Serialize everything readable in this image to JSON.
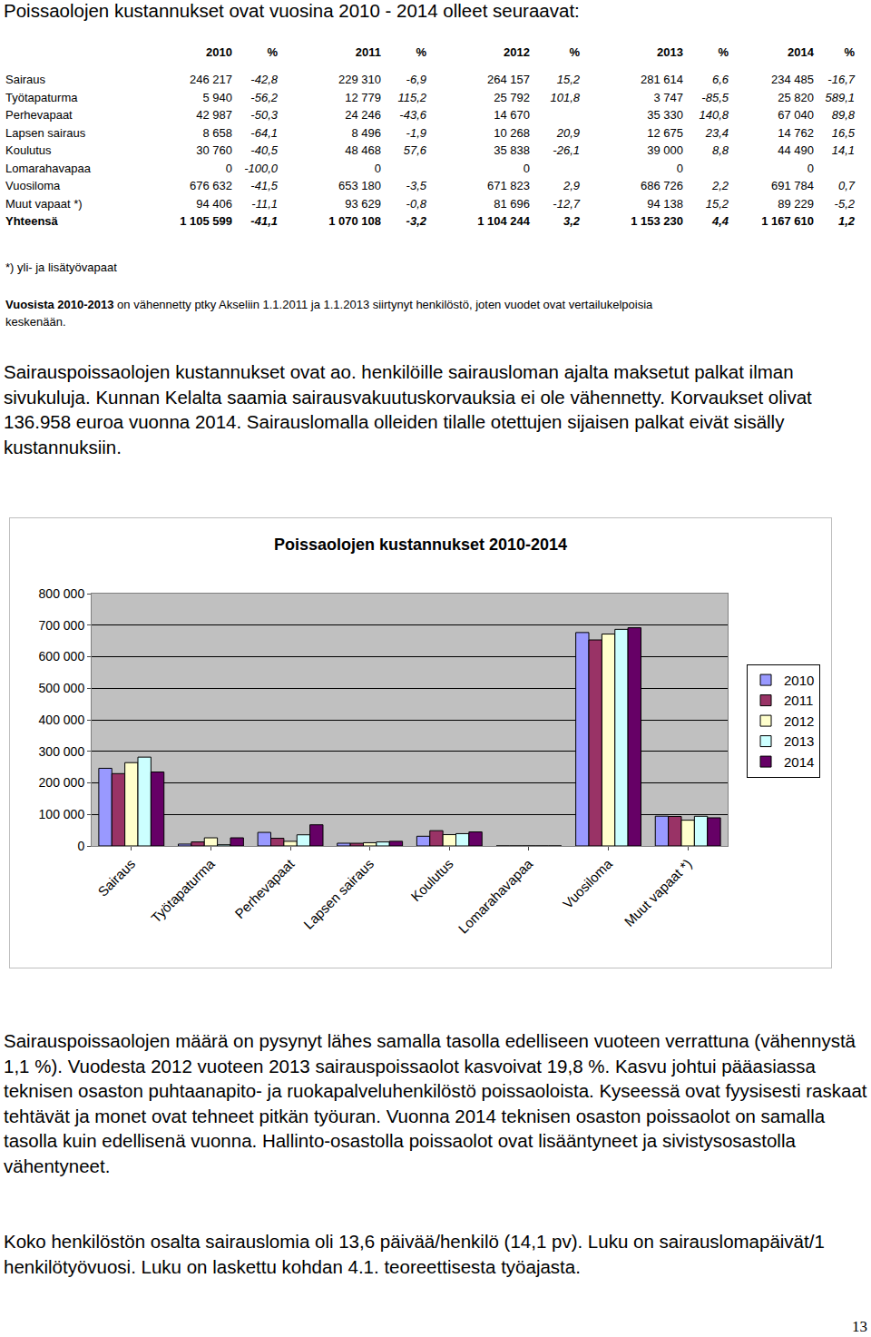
{
  "heading": "Poissaolojen kustannukset ovat vuosina 2010 - 2014 olleet seuraavat:",
  "table": {
    "header": [
      "2010",
      "%",
      "2011",
      "%",
      "2012",
      "%",
      "2013",
      "%",
      "2014",
      "%"
    ],
    "rows": [
      [
        "Sairaus",
        "246 217",
        "-42,8",
        "229 310",
        "-6,9",
        "264 157",
        "15,2",
        "281 614",
        "6,6",
        "234 485",
        "-16,7"
      ],
      [
        "Työtapaturma",
        "5 940",
        "-56,2",
        "12 779",
        "115,2",
        "25 792",
        "101,8",
        "3 747",
        "-85,5",
        "25 820",
        "589,1"
      ],
      [
        "Perhevapaat",
        "42 987",
        "-50,3",
        "24 246",
        "-43,6",
        "14 670",
        null,
        "35 330",
        "140,8",
        "67 040",
        "89,8"
      ],
      [
        "Lapsen sairaus",
        "8 658",
        "-64,1",
        "8 496",
        "-1,9",
        "10 268",
        "20,9",
        "12 675",
        "23,4",
        "14 762",
        "16,5"
      ],
      [
        "Koulutus",
        "30 760",
        "-40,5",
        "48 468",
        "57,6",
        "35 838",
        "-26,1",
        "39 000",
        "8,8",
        "44 490",
        "14,1"
      ],
      [
        "Lomarahavapaa",
        "0",
        "-100,0",
        "0",
        null,
        "0",
        null,
        "0",
        null,
        "0",
        null
      ],
      [
        "Vuosiloma",
        "676 632",
        "-41,5",
        "653 180",
        "-3,5",
        "671 823",
        "2,9",
        "686 726",
        "2,2",
        "691 784",
        "0,7"
      ],
      [
        "Muut vapaat *)",
        "94 406",
        "-11,1",
        "93 629",
        "-0,8",
        "81 696",
        "-12,7",
        "94 138",
        "15,2",
        "89 229",
        "-5,2"
      ],
      [
        "Yhteensä",
        "1 105 599",
        "-41,1",
        "1 070 108",
        "-3,2",
        "1 104 244",
        "3,2",
        "1 153 230",
        "4,4",
        "1 167 610",
        "1,2"
      ]
    ]
  },
  "notes": {
    "footnote": "*) yli- ja lisätyövapaat",
    "comparison_bold": "Vuosista 2010-2013",
    "comparison_rest": " on vähennetty ptky Akseliin 1.1.2011 ja 1.1.2013 siirtynyt henkilöstö, joten vuodet ovat vertailukelpoisia keskenään."
  },
  "paragraph_before_chart": "Sairauspoissaolojen kustannukset ovat ao. henkilöille sairausloman ajalta maksetut palkat ilman sivukuluja. Kunnan Kelalta saamia sairausvakuutuskorvauksia ei ole vähennetty. Korvaukset olivat 136.958 euroa vuonna 2014. Sairauslomalla olleiden tilalle otettujen sijaisen palkat eivät sisälly kustannuksiin.",
  "chart_data": {
    "type": "bar",
    "title": "Poissaolojen kustannukset 2010-2014",
    "categories": [
      "Sairaus",
      "Työtapaturma",
      "Perhevapaat",
      "Lapsen sairaus",
      "Koulutus",
      "Lomarahavapaa",
      "Vuosiloma",
      "Muut vapaat *)"
    ],
    "series": [
      {
        "name": "2010",
        "color": "#9999ff",
        "values": [
          246217,
          5940,
          42987,
          8658,
          30760,
          0,
          676632,
          94406
        ]
      },
      {
        "name": "2011",
        "color": "#993366",
        "values": [
          229310,
          12779,
          24246,
          8496,
          48468,
          0,
          653180,
          93629
        ]
      },
      {
        "name": "2012",
        "color": "#ffffcc",
        "values": [
          264157,
          25792,
          14670,
          10268,
          35838,
          0,
          671823,
          81696
        ]
      },
      {
        "name": "2013",
        "color": "#ccffff",
        "values": [
          281614,
          3747,
          35330,
          12675,
          39000,
          0,
          686726,
          94138
        ]
      },
      {
        "name": "2014",
        "color": "#660066",
        "values": [
          234485,
          25820,
          67040,
          14762,
          44490,
          0,
          691784,
          89229
        ]
      }
    ],
    "ylim": [
      0,
      800000
    ],
    "yticks": [
      0,
      {
        "value": 100000,
        "label": "100 000"
      },
      {
        "value": 200000,
        "label": "200 000"
      },
      {
        "value": 300000,
        "label": "300 000"
      },
      {
        "value": 400000,
        "label": "400 000"
      },
      {
        "value": 500000,
        "label": "500 000"
      },
      {
        "value": 600000,
        "label": "600 000"
      },
      {
        "value": 700000,
        "label": "700 000"
      },
      {
        "value": 800000,
        "label": "800 000"
      }
    ],
    "grid": true,
    "legend": "right"
  },
  "paragraphs_after_chart": [
    "Sairauspoissaolojen määrä on pysynyt lähes samalla tasolla edelliseen vuoteen verrattuna (vähennystä 1,1 %). Vuodesta 2012 vuoteen 2013 sairauspoissaolot kasvoivat 19,8 %. Kasvu johtui pääasiassa teknisen osaston puhtaanapito- ja ruokapalveluhenkilöstö poissaoloista. Kyseessä ovat fyysisesti raskaat tehtävät ja monet ovat tehneet pitkän työuran. Vuonna 2014 teknisen osaston poissaolot on samalla tasolla kuin edellisenä vuonna. Hallinto-osastolla poissaolot ovat lisääntyneet ja sivistysosastolla vähentyneet.",
    "Koko henkilöstön osalta sairauslomia oli 13,6 päivää/henkilö (14,1 pv). Luku on sairauslomapäivät/1 henkilötyövuosi. Luku on laskettu kohdan 4.1. teoreettisesta työajasta."
  ],
  "page_number": "13"
}
